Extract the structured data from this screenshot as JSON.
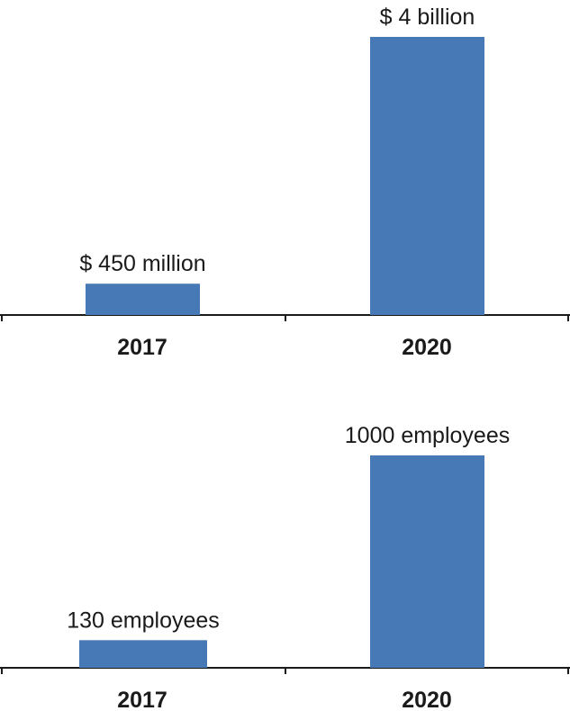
{
  "chart_data": [
    {
      "type": "bar",
      "categories": [
        "2017",
        "2020"
      ],
      "values": [
        450000000,
        4000000000
      ],
      "data_labels": [
        "$ 450 million",
        "$ 4 billion"
      ],
      "ylim": [
        0,
        4000000000
      ],
      "grid": false,
      "bar_color": "#4679B5",
      "axis_color": "#1a1a1a"
    },
    {
      "type": "bar",
      "categories": [
        "2017",
        "2020"
      ],
      "values": [
        130,
        1000
      ],
      "data_labels": [
        "130 employees",
        "1000 employees"
      ],
      "ylim": [
        0,
        1000
      ],
      "grid": false,
      "bar_color": "#4679B5",
      "axis_color": "#1a1a1a"
    }
  ]
}
